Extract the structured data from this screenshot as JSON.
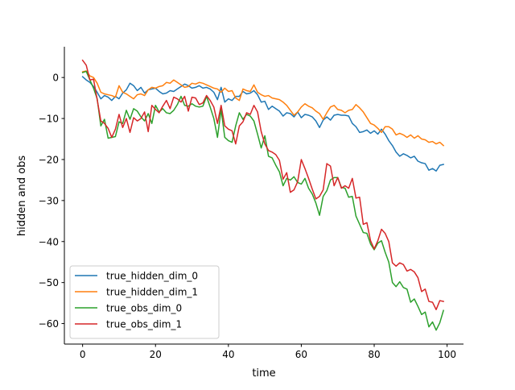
{
  "chart_data": {
    "type": "line",
    "title": "",
    "xlabel": "time",
    "ylabel": "hidden and obs",
    "xlim": [
      -5,
      104.5
    ],
    "ylim": [
      -65,
      7.5
    ],
    "xticks": [
      0,
      20,
      40,
      60,
      80,
      100
    ],
    "yticks": [
      0,
      -10,
      -20,
      -30,
      -40,
      -50,
      -60
    ],
    "grid": false,
    "legend_position": "lower-left",
    "series": [
      {
        "name": "true_hidden_dim_0",
        "color": "#1f77b4",
        "x": [
          0,
          1,
          2,
          3,
          4,
          5,
          6,
          7,
          8,
          9,
          10,
          11,
          12,
          13,
          14,
          15,
          16,
          17,
          18,
          19,
          20,
          21,
          22,
          23,
          24,
          25,
          26,
          27,
          28,
          29,
          30,
          31,
          32,
          33,
          34,
          35,
          36,
          37,
          38,
          39,
          40,
          41,
          42,
          43,
          44,
          45,
          46,
          47,
          48,
          49,
          50,
          51,
          52,
          53,
          54,
          55,
          56,
          57,
          58,
          59,
          60,
          61,
          62,
          63,
          64,
          65,
          66,
          67,
          68,
          69,
          70,
          71,
          72,
          73,
          74,
          75,
          76,
          77,
          78,
          79,
          80,
          81,
          82,
          83,
          84,
          85,
          86,
          87,
          88,
          89,
          90,
          91,
          92,
          93,
          94,
          95,
          96,
          97,
          98,
          99
        ],
        "values": [
          0.2,
          -0.6,
          -1.2,
          -2.2,
          -3.6,
          -5.2,
          -4.4,
          -4.8,
          -5.6,
          -4.6,
          -5.2,
          -3.8,
          -3.0,
          -1.4,
          -2.0,
          -3.2,
          -2.4,
          -3.8,
          -3.0,
          -2.8,
          -2.6,
          -3.4,
          -4.0,
          -3.8,
          -3.2,
          -3.4,
          -2.8,
          -2.2,
          -1.6,
          -2.0,
          -2.6,
          -2.4,
          -2.0,
          -2.6,
          -2.4,
          -2.8,
          -3.6,
          -5.4,
          -2.4,
          -6.0,
          -5.2,
          -5.6,
          -4.6,
          -4.6,
          -3.4,
          -4.0,
          -3.8,
          -3.2,
          -4.2,
          -6.0,
          -5.8,
          -7.8,
          -7.0,
          -7.6,
          -8.2,
          -9.4,
          -8.6,
          -8.8,
          -9.6,
          -8.4,
          -9.8,
          -9.0,
          -9.2,
          -9.6,
          -10.6,
          -12.2,
          -10.4,
          -9.6,
          -10.4,
          -9.2,
          -9.0,
          -9.2,
          -9.2,
          -9.4,
          -11.2,
          -12.0,
          -13.4,
          -13.2,
          -12.8,
          -13.6,
          -13.0,
          -13.8,
          -12.6,
          -13.8,
          -15.4,
          -16.6,
          -18.2,
          -19.2,
          -18.6,
          -19.0,
          -19.6,
          -19.2,
          -20.4,
          -20.8,
          -21.0,
          -22.6,
          -22.2,
          -22.8,
          -21.4,
          -21.2
        ]
      },
      {
        "name": "true_hidden_dim_1",
        "color": "#ff7f0e",
        "x": [
          0,
          1,
          2,
          3,
          4,
          5,
          6,
          7,
          8,
          9,
          10,
          11,
          12,
          13,
          14,
          15,
          16,
          17,
          18,
          19,
          20,
          21,
          22,
          23,
          24,
          25,
          26,
          27,
          28,
          29,
          30,
          31,
          32,
          33,
          34,
          35,
          36,
          37,
          38,
          39,
          40,
          41,
          42,
          43,
          44,
          45,
          46,
          47,
          48,
          49,
          50,
          51,
          52,
          53,
          54,
          55,
          56,
          57,
          58,
          59,
          60,
          61,
          62,
          63,
          64,
          65,
          66,
          67,
          68,
          69,
          70,
          71,
          72,
          73,
          74,
          75,
          76,
          77,
          78,
          79,
          80,
          81,
          82,
          83,
          84,
          85,
          86,
          87,
          88,
          89,
          90,
          91,
          92,
          93,
          94,
          95,
          96,
          97,
          98,
          99
        ],
        "values": [
          1.4,
          1.6,
          0.4,
          0.0,
          -1.4,
          -3.6,
          -4.0,
          -4.2,
          -4.4,
          -4.8,
          -2.0,
          -3.6,
          -4.0,
          -4.6,
          -5.2,
          -4.2,
          -4.0,
          -4.4,
          -3.0,
          -2.4,
          -2.6,
          -2.2,
          -2.0,
          -1.2,
          -1.4,
          -0.6,
          -1.2,
          -1.8,
          -2.4,
          -2.2,
          -1.4,
          -1.6,
          -1.2,
          -1.4,
          -1.8,
          -2.2,
          -2.6,
          -2.8,
          -3.6,
          -2.6,
          -3.4,
          -3.2,
          -5.0,
          -5.6,
          -2.8,
          -3.2,
          -3.4,
          -1.8,
          -3.6,
          -4.2,
          -4.6,
          -4.4,
          -5.0,
          -5.2,
          -5.4,
          -6.0,
          -6.8,
          -8.0,
          -9.2,
          -8.4,
          -7.2,
          -6.4,
          -7.0,
          -7.4,
          -8.2,
          -8.8,
          -10.2,
          -8.6,
          -7.2,
          -6.8,
          -7.8,
          -8.0,
          -8.6,
          -8.0,
          -7.8,
          -6.6,
          -7.4,
          -8.4,
          -9.8,
          -11.2,
          -11.6,
          -12.4,
          -13.4,
          -12.0,
          -12.0,
          -12.6,
          -14.0,
          -13.6,
          -14.0,
          -14.6,
          -14.0,
          -14.8,
          -14.2,
          -15.0,
          -15.2,
          -15.8,
          -15.6,
          -16.2,
          -15.8,
          -16.6
        ]
      },
      {
        "name": "true_obs_dim_0",
        "color": "#2ca02c",
        "x": [
          0,
          1,
          2,
          3,
          4,
          5,
          6,
          7,
          8,
          9,
          10,
          11,
          12,
          13,
          14,
          15,
          16,
          17,
          18,
          19,
          20,
          21,
          22,
          23,
          24,
          25,
          26,
          27,
          28,
          29,
          30,
          31,
          32,
          33,
          34,
          35,
          36,
          37,
          38,
          39,
          40,
          41,
          42,
          43,
          44,
          45,
          46,
          47,
          48,
          49,
          50,
          51,
          52,
          53,
          54,
          55,
          56,
          57,
          58,
          59,
          60,
          61,
          62,
          63,
          64,
          65,
          66,
          67,
          68,
          69,
          70,
          71,
          72,
          73,
          74,
          75,
          76,
          77,
          78,
          79,
          80,
          81,
          82,
          83,
          84,
          85,
          86,
          87,
          88,
          89,
          90,
          91,
          92,
          93,
          94,
          95,
          96,
          97,
          98,
          99
        ],
        "values": [
          1.2,
          1.5,
          -0.6,
          -2.6,
          -5.2,
          -11.8,
          -10.2,
          -14.8,
          -14.6,
          -14.4,
          -10.8,
          -11.2,
          -8.0,
          -10.2,
          -7.6,
          -8.2,
          -9.6,
          -10.6,
          -8.8,
          -11.2,
          -6.8,
          -8.4,
          -7.6,
          -8.6,
          -8.8,
          -8.0,
          -6.6,
          -4.6,
          -6.8,
          -7.0,
          -6.4,
          -7.0,
          -7.2,
          -7.0,
          -4.6,
          -7.2,
          -10.0,
          -14.6,
          -7.8,
          -14.6,
          -15.4,
          -15.8,
          -11.8,
          -8.6,
          -10.2,
          -9.0,
          -9.4,
          -10.6,
          -13.8,
          -17.2,
          -14.2,
          -19.2,
          -19.6,
          -21.4,
          -23.0,
          -26.4,
          -24.6,
          -25.0,
          -24.2,
          -25.6,
          -26.0,
          -24.6,
          -27.0,
          -28.4,
          -30.6,
          -33.6,
          -29.0,
          -27.6,
          -25.0,
          -24.4,
          -24.4,
          -26.8,
          -27.0,
          -29.2,
          -29.0,
          -33.8,
          -35.8,
          -37.8,
          -38.0,
          -40.6,
          -42.0,
          -40.4,
          -39.8,
          -42.6,
          -45.0,
          -50.0,
          -51.0,
          -49.8,
          -51.2,
          -51.6,
          -54.8,
          -54.0,
          -55.8,
          -57.8,
          -57.2,
          -60.8,
          -59.6,
          -61.6,
          -59.8,
          -56.8
        ]
      },
      {
        "name": "true_obs_dim_1",
        "color": "#d62728",
        "x": [
          0,
          1,
          2,
          3,
          4,
          5,
          6,
          7,
          8,
          9,
          10,
          11,
          12,
          13,
          14,
          15,
          16,
          17,
          18,
          19,
          20,
          21,
          22,
          23,
          24,
          25,
          26,
          27,
          28,
          29,
          30,
          31,
          32,
          33,
          34,
          35,
          36,
          37,
          38,
          39,
          40,
          41,
          42,
          43,
          44,
          45,
          46,
          47,
          48,
          49,
          50,
          51,
          52,
          53,
          54,
          55,
          56,
          57,
          58,
          59,
          60,
          61,
          62,
          63,
          64,
          65,
          66,
          67,
          68,
          69,
          70,
          71,
          72,
          73,
          74,
          75,
          76,
          77,
          78,
          79,
          80,
          81,
          82,
          83,
          84,
          85,
          86,
          87,
          88,
          89,
          90,
          91,
          92,
          93,
          94,
          95,
          96,
          97,
          98,
          99
        ],
        "values": [
          4.2,
          3.0,
          -0.6,
          -0.4,
          -5.4,
          -10.6,
          -11.2,
          -12.4,
          -14.6,
          -12.6,
          -9.0,
          -12.2,
          -10.0,
          -13.4,
          -9.8,
          -10.6,
          -10.0,
          -8.4,
          -13.2,
          -6.8,
          -7.8,
          -8.6,
          -7.0,
          -5.6,
          -7.6,
          -4.8,
          -5.2,
          -6.0,
          -4.6,
          -8.2,
          -4.8,
          -5.0,
          -6.6,
          -6.2,
          -4.4,
          -5.6,
          -7.2,
          -11.2,
          -6.8,
          -11.8,
          -12.6,
          -13.0,
          -16.2,
          -11.8,
          -10.8,
          -8.6,
          -9.0,
          -6.8,
          -8.4,
          -13.2,
          -16.2,
          -17.8,
          -18.2,
          -18.8,
          -20.2,
          -24.8,
          -23.2,
          -28.0,
          -27.4,
          -25.4,
          -20.0,
          -22.2,
          -24.6,
          -27.2,
          -29.6,
          -29.0,
          -27.4,
          -21.0,
          -21.6,
          -26.4,
          -24.4,
          -27.0,
          -26.4,
          -27.0,
          -24.6,
          -29.4,
          -29.2,
          -35.8,
          -35.4,
          -39.8,
          -41.8,
          -39.8,
          -37.0,
          -38.0,
          -40.0,
          -45.2,
          -46.0,
          -45.2,
          -45.6,
          -47.2,
          -46.8,
          -47.4,
          -48.8,
          -52.2,
          -51.6,
          -54.6,
          -54.8,
          -56.6,
          -54.4,
          -54.6
        ]
      }
    ]
  }
}
